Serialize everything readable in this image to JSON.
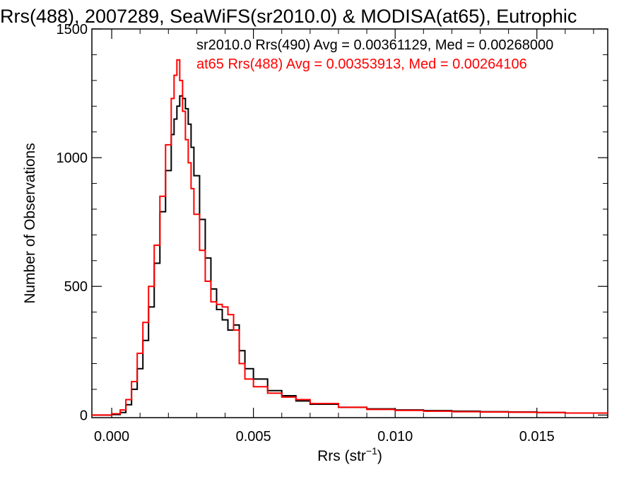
{
  "chart_data": {
    "type": "line",
    "title": "Rrs(488), 2007289, SeaWiFS(sr2010.0) & MODISA(at65), Eutrophic",
    "xlabel_main": "Rrs (str",
    "xlabel_exp": "−1",
    "xlabel_close": ")",
    "ylabel": "Number of Observations",
    "xlim": [
      -0.0007,
      0.0175
    ],
    "ylim": [
      -10,
      1500
    ],
    "xticks": [
      {
        "value": 0.0,
        "label": "0.000"
      },
      {
        "value": 0.005,
        "label": "0.005"
      },
      {
        "value": 0.01,
        "label": "0.010"
      },
      {
        "value": 0.015,
        "label": "0.015"
      }
    ],
    "yticks": [
      {
        "value": 0,
        "label": "0"
      },
      {
        "value": 500,
        "label": "500"
      },
      {
        "value": 1000,
        "label": "1000"
      },
      {
        "value": 1500,
        "label": "1500"
      }
    ],
    "legend": [
      {
        "text": "sr2010.0 Rrs(490) Avg = 0.00361129, Med = 0.00268000",
        "color": "#000000"
      },
      {
        "text": "at65 Rrs(488) Avg = 0.00353913, Med = 0.00264106",
        "color": "#ff0000"
      }
    ],
    "series": [
      {
        "name": "sr2010.0 Rrs(490)",
        "color": "#000000",
        "x": [
          -0.0007,
          0.0,
          0.0003,
          0.0005,
          0.0007,
          0.0009,
          0.0011,
          0.0013,
          0.0015,
          0.0017,
          0.0019,
          0.0021,
          0.0022,
          0.0023,
          0.0024,
          0.0025,
          0.0026,
          0.0027,
          0.0028,
          0.0029,
          0.0031,
          0.0033,
          0.0035,
          0.0037,
          0.0039,
          0.0041,
          0.0043,
          0.0045,
          0.0047,
          0.005,
          0.0055,
          0.006,
          0.0065,
          0.007,
          0.008,
          0.009,
          0.01,
          0.011,
          0.012,
          0.013,
          0.014,
          0.015,
          0.016,
          0.0175
        ],
        "y": [
          0,
          2,
          10,
          40,
          100,
          180,
          290,
          420,
          590,
          790,
          950,
          1090,
          1150,
          1200,
          1240,
          1230,
          1190,
          1130,
          1040,
          930,
          760,
          610,
          490,
          410,
          370,
          330,
          350,
          250,
          180,
          140,
          95,
          75,
          55,
          42,
          30,
          24,
          20,
          17,
          15,
          13,
          12,
          10,
          8,
          6
        ]
      },
      {
        "name": "at65 Rrs(488)",
        "color": "#ff0000",
        "x": [
          -0.0007,
          0.0,
          0.0003,
          0.0005,
          0.0007,
          0.0009,
          0.0011,
          0.0013,
          0.0015,
          0.0017,
          0.0019,
          0.0021,
          0.0022,
          0.0023,
          0.0024,
          0.0025,
          0.0026,
          0.0027,
          0.0028,
          0.0029,
          0.0031,
          0.0033,
          0.0035,
          0.0037,
          0.0039,
          0.0041,
          0.0043,
          0.0045,
          0.0047,
          0.005,
          0.0055,
          0.006,
          0.0065,
          0.007,
          0.008,
          0.009,
          0.01,
          0.011,
          0.012,
          0.013,
          0.014,
          0.015,
          0.016,
          0.0175
        ],
        "y": [
          0,
          5,
          20,
          60,
          130,
          240,
          360,
          500,
          660,
          850,
          1050,
          1230,
          1320,
          1380,
          1300,
          1180,
          1070,
          980,
          880,
          780,
          640,
          520,
          440,
          430,
          420,
          390,
          330,
          200,
          140,
          110,
          85,
          70,
          60,
          45,
          30,
          22,
          18,
          15,
          13,
          12,
          11,
          10,
          8,
          6
        ]
      }
    ]
  }
}
